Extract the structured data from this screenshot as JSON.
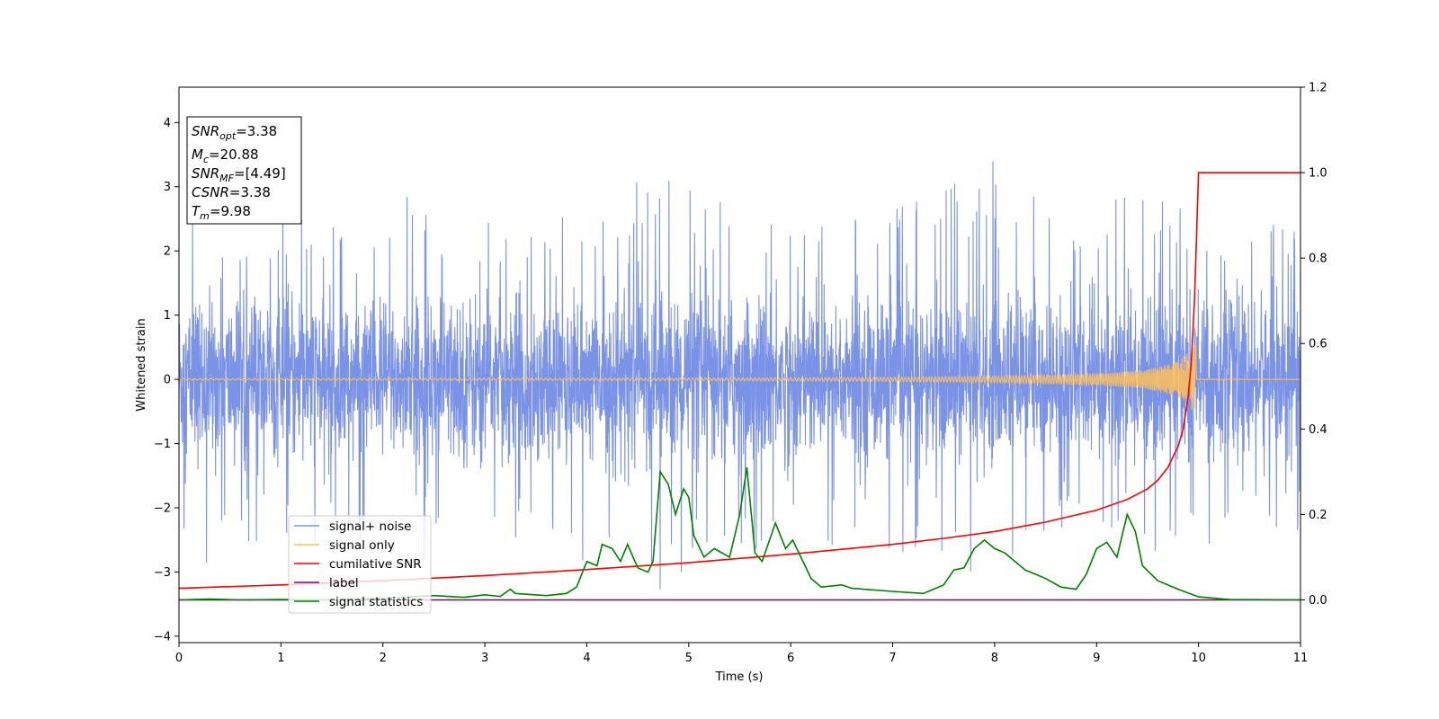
{
  "chart_data": {
    "type": "line",
    "xlabel": "Time (s)",
    "ylabel": "Whitened strain",
    "xlim": [
      0,
      11
    ],
    "ylim": [
      -4.1,
      4.55
    ],
    "y2lim": [
      -0.1,
      1.2
    ],
    "x_ticks": [
      "0",
      "1",
      "2",
      "3",
      "4",
      "5",
      "6",
      "7",
      "8",
      "9",
      "10",
      "11"
    ],
    "y_ticks": [
      "−4",
      "−3",
      "−2",
      "−1",
      "0",
      "1",
      "2",
      "3",
      "4"
    ],
    "y2_ticks": [
      "0.0",
      "0.2",
      "0.4",
      "0.6",
      "0.8",
      "1.0",
      "1.2"
    ],
    "grid": false,
    "legend_position": "lower-left",
    "legend": [
      {
        "label": "signal+ noise",
        "color": "#7b93e6"
      },
      {
        "label": "signal only",
        "color": "#ffc05a"
      },
      {
        "label": "cumilative SNR",
        "color": "#ff0000"
      },
      {
        "label": "label",
        "color": "#800080"
      },
      {
        "label": "signal statistics",
        "color": "#008000"
      }
    ],
    "annotation_box": [
      {
        "base": "SNR",
        "sub": "opt",
        "value": "=3.38"
      },
      {
        "base": "M",
        "sub": "c",
        "value": "=20.88"
      },
      {
        "base": "SNR",
        "sub": "MF",
        "value": "=[4.49]"
      },
      {
        "base": "CSNR",
        "sub": "",
        "value": "=3.38"
      },
      {
        "base": "T",
        "sub": "m",
        "value": "=9.98"
      }
    ],
    "series": [
      {
        "name": "signal+ noise",
        "axis": "left",
        "color": "#7b93e6",
        "description": "whitened noisy strain, amplitude roughly within ±2 with spikes to ±3.5",
        "envelope_points": [
          [
            0,
            3.2
          ],
          [
            0.5,
            2.6
          ],
          [
            1.1,
            2.6
          ],
          [
            2.3,
            2.9
          ],
          [
            2.8,
            2.5
          ],
          [
            3.2,
            2.4
          ],
          [
            4.7,
            3.3
          ],
          [
            5.3,
            2.8
          ],
          [
            6.3,
            2.6
          ],
          [
            7.4,
            2.8
          ],
          [
            7.9,
            3.5
          ],
          [
            8.7,
            2.7
          ],
          [
            9.3,
            3.0
          ],
          [
            10.5,
            2.4
          ],
          [
            11,
            2.5
          ]
        ]
      },
      {
        "name": "signal only",
        "axis": "left",
        "color": "#ffc05a",
        "description": "chirp signal near zero growing to peak at merger time",
        "merger_time": 9.98,
        "peak_amplitude": 0.6,
        "envelope_points": [
          [
            0,
            0.01
          ],
          [
            5,
            0.02
          ],
          [
            7,
            0.03
          ],
          [
            8,
            0.05
          ],
          [
            9,
            0.09
          ],
          [
            9.5,
            0.15
          ],
          [
            9.8,
            0.28
          ],
          [
            9.95,
            0.5
          ],
          [
            9.98,
            0.6
          ],
          [
            10.0,
            0.0
          ],
          [
            11,
            0.0
          ]
        ]
      },
      {
        "name": "cumilative SNR",
        "axis": "right",
        "color": "#ff0000",
        "points": [
          [
            0,
            0.027
          ],
          [
            1,
            0.035
          ],
          [
            2,
            0.045
          ],
          [
            3,
            0.057
          ],
          [
            4,
            0.071
          ],
          [
            5,
            0.087
          ],
          [
            6,
            0.107
          ],
          [
            7,
            0.13
          ],
          [
            7.5,
            0.144
          ],
          [
            8,
            0.16
          ],
          [
            8.5,
            0.182
          ],
          [
            9,
            0.21
          ],
          [
            9.3,
            0.235
          ],
          [
            9.5,
            0.26
          ],
          [
            9.6,
            0.28
          ],
          [
            9.7,
            0.31
          ],
          [
            9.8,
            0.36
          ],
          [
            9.85,
            0.4
          ],
          [
            9.9,
            0.48
          ],
          [
            9.93,
            0.56
          ],
          [
            9.96,
            0.7
          ],
          [
            9.98,
            0.85
          ],
          [
            10.0,
            1.0
          ],
          [
            11,
            1.0
          ]
        ]
      },
      {
        "name": "label",
        "axis": "right",
        "color": "#800080",
        "points": [
          [
            0,
            0.0
          ],
          [
            11,
            0.0
          ]
        ]
      },
      {
        "name": "signal statistics",
        "axis": "right",
        "color": "#008000",
        "points": [
          [
            0,
            0.0
          ],
          [
            0.3,
            0.002
          ],
          [
            0.6,
            0.0
          ],
          [
            1.0,
            0.001
          ],
          [
            1.5,
            0.0
          ],
          [
            2.0,
            0.004
          ],
          [
            2.5,
            0.01
          ],
          [
            2.8,
            0.006
          ],
          [
            3.0,
            0.012
          ],
          [
            3.15,
            0.008
          ],
          [
            3.25,
            0.025
          ],
          [
            3.3,
            0.015
          ],
          [
            3.6,
            0.01
          ],
          [
            3.8,
            0.015
          ],
          [
            3.9,
            0.03
          ],
          [
            4.0,
            0.09
          ],
          [
            4.1,
            0.08
          ],
          [
            4.15,
            0.13
          ],
          [
            4.25,
            0.12
          ],
          [
            4.33,
            0.09
          ],
          [
            4.4,
            0.13
          ],
          [
            4.5,
            0.075
          ],
          [
            4.6,
            0.065
          ],
          [
            4.65,
            0.09
          ],
          [
            4.72,
            0.3
          ],
          [
            4.8,
            0.27
          ],
          [
            4.87,
            0.2
          ],
          [
            4.95,
            0.26
          ],
          [
            5.0,
            0.24
          ],
          [
            5.05,
            0.15
          ],
          [
            5.15,
            0.1
          ],
          [
            5.25,
            0.12
          ],
          [
            5.4,
            0.1
          ],
          [
            5.5,
            0.2
          ],
          [
            5.57,
            0.31
          ],
          [
            5.65,
            0.11
          ],
          [
            5.72,
            0.09
          ],
          [
            5.85,
            0.18
          ],
          [
            5.95,
            0.12
          ],
          [
            6.02,
            0.14
          ],
          [
            6.1,
            0.1
          ],
          [
            6.2,
            0.05
          ],
          [
            6.3,
            0.03
          ],
          [
            6.5,
            0.035
          ],
          [
            6.6,
            0.027
          ],
          [
            7.0,
            0.02
          ],
          [
            7.3,
            0.015
          ],
          [
            7.5,
            0.035
          ],
          [
            7.6,
            0.07
          ],
          [
            7.7,
            0.075
          ],
          [
            7.8,
            0.12
          ],
          [
            7.9,
            0.14
          ],
          [
            8.0,
            0.12
          ],
          [
            8.1,
            0.11
          ],
          [
            8.2,
            0.09
          ],
          [
            8.3,
            0.07
          ],
          [
            8.4,
            0.06
          ],
          [
            8.5,
            0.05
          ],
          [
            8.65,
            0.03
          ],
          [
            8.8,
            0.025
          ],
          [
            8.9,
            0.06
          ],
          [
            9.0,
            0.12
          ],
          [
            9.1,
            0.135
          ],
          [
            9.2,
            0.1
          ],
          [
            9.3,
            0.2
          ],
          [
            9.38,
            0.16
          ],
          [
            9.45,
            0.08
          ],
          [
            9.6,
            0.045
          ],
          [
            9.8,
            0.025
          ],
          [
            10.0,
            0.007
          ],
          [
            10.3,
            0.001
          ],
          [
            11,
            0.0
          ]
        ]
      }
    ]
  }
}
